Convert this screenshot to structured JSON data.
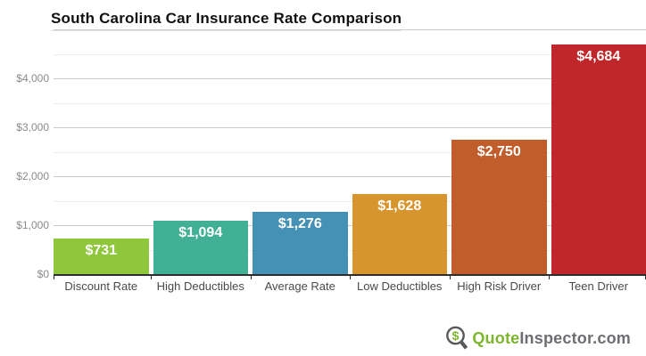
{
  "title": "South Carolina Car Insurance Rate Comparison",
  "chart_data": {
    "type": "bar",
    "title": "South Carolina Car Insurance Rate Comparison",
    "categories": [
      "Discount Rate",
      "High Deductibles",
      "Average Rate",
      "Low Deductibles",
      "High Risk Driver",
      "Teen Driver"
    ],
    "values": [
      731,
      1094,
      1276,
      1628,
      2750,
      4684
    ],
    "value_labels": [
      "$731",
      "$1,094",
      "$1,276",
      "$1,628",
      "$2,750",
      "$4,684"
    ],
    "bar_colors": [
      "#8fc73c",
      "#42b095",
      "#4590b5",
      "#d7952d",
      "#c05d2b",
      "#c0272b"
    ],
    "xlabel": "",
    "ylabel": "",
    "ylim": [
      0,
      5000
    ],
    "ytick_step": 1000,
    "minor_step": 500,
    "ytick_labels": [
      "$0",
      "$1,000",
      "$2,000",
      "$3,000",
      "$4,000"
    ],
    "grid": "horizontal, major and minor lines, legend none"
  },
  "colors": {
    "axis": "#2d2d2d",
    "major_grid": "#cbcbcb",
    "minor_grid": "#ececec",
    "ytick_text": "#8a8a8a",
    "xtick_text": "#4a4a4a",
    "value_text": "#ffffff"
  },
  "watermark": {
    "icon": "magnifier-dollar-icon",
    "brand_green": "Quote",
    "brand_gray": "Inspector.com",
    "green": "#7db52e",
    "gray": "#6d6e71"
  }
}
